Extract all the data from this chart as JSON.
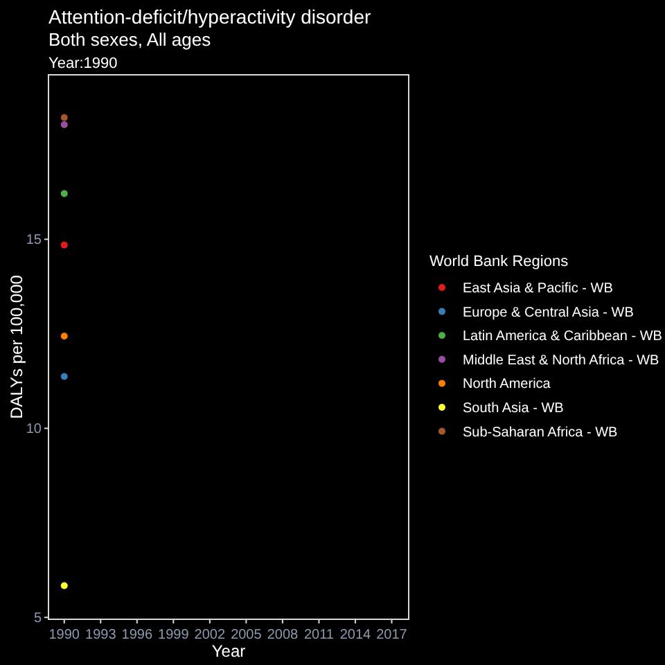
{
  "chart_data": {
    "type": "scatter",
    "title": "Attention-deficit/hyperactivity disorder",
    "subtitle": "Both sexes, All ages",
    "annotations": [
      "Year:1990"
    ],
    "xlabel": "Year",
    "ylabel": "DALYs per 100,000",
    "legend_title": "World Bank Regions",
    "legend": "right",
    "marker": "circle",
    "grid": false,
    "xlim": [
      1988.7,
      2018.4
    ],
    "xticks": [
      1990,
      1993,
      1996,
      1999,
      2002,
      2005,
      2008,
      2011,
      2014,
      2017
    ],
    "ylim": [
      4.95,
      19.35
    ],
    "yticks": [
      5,
      10,
      15
    ],
    "x": [
      1990
    ],
    "series": [
      {
        "name": "East Asia & Pacific - WB",
        "color": "#e41a1c",
        "values": [
          14.85
        ]
      },
      {
        "name": "Europe & Central Asia - WB",
        "color": "#377eb8",
        "values": [
          11.37
        ]
      },
      {
        "name": "Latin America & Caribbean - WB",
        "color": "#4daf4a",
        "values": [
          16.21
        ]
      },
      {
        "name": "Middle East & North Africa - WB",
        "color": "#984ea3",
        "values": [
          18.03
        ]
      },
      {
        "name": "North America",
        "color": "#ff7f00",
        "values": [
          12.44
        ]
      },
      {
        "name": "South Asia - WB",
        "color": "#ffff33",
        "values": [
          5.84
        ]
      },
      {
        "name": "Sub-Saharan Africa - WB",
        "color": "#a65628",
        "values": [
          18.22
        ]
      }
    ]
  }
}
